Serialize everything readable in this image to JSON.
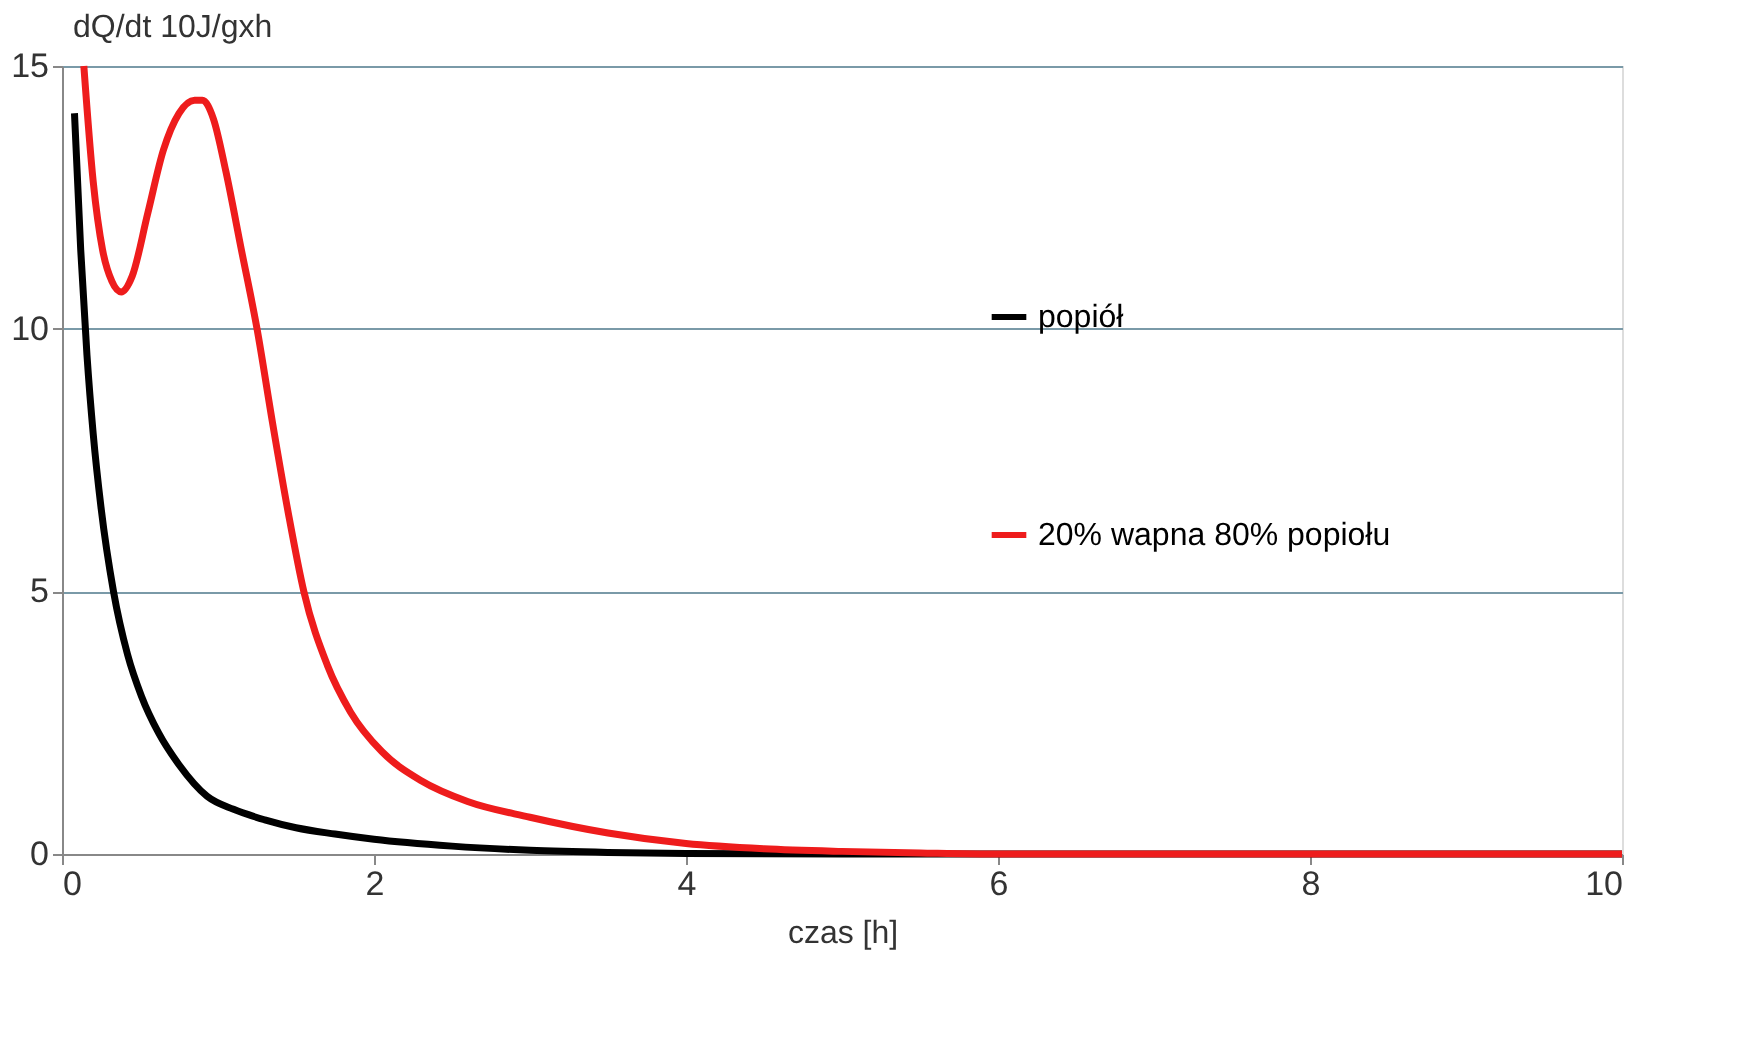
{
  "chart_data": {
    "type": "line",
    "xlabel": "czas [h]",
    "ylabel": "dQ/dt 10J/gxh",
    "xlim": [
      0,
      10
    ],
    "ylim": [
      0,
      15
    ],
    "xticks": [
      0,
      2,
      4,
      6,
      8,
      10
    ],
    "yticks": [
      0,
      5,
      10,
      15
    ],
    "grid": "y",
    "legend": "top right",
    "marker": "none",
    "line_style": "solid",
    "series": [
      {
        "name": "popiół",
        "color": "#000000",
        "x": [
          0.08,
          0.12,
          0.16,
          0.2,
          0.25,
          0.33,
          0.42,
          0.51,
          0.62,
          0.75,
          0.93,
          1.1,
          1.3,
          1.5,
          1.75,
          2.0,
          2.5,
          3.0,
          3.5,
          4.0,
          5.0,
          6.0,
          8.0,
          10.0
        ],
        "values": [
          14.1,
          11.5,
          9.5,
          8.0,
          6.6,
          5.0,
          3.8,
          3.0,
          2.3,
          1.7,
          1.1,
          0.85,
          0.65,
          0.5,
          0.38,
          0.28,
          0.15,
          0.07,
          0.03,
          0.01,
          0,
          0,
          0,
          0
        ]
      },
      {
        "name": "20% wapna 80% popiołu",
        "color": "#ee1c1c",
        "x": [
          0.14,
          0.2,
          0.26,
          0.32,
          0.38,
          0.45,
          0.55,
          0.65,
          0.75,
          0.85,
          0.9,
          0.97,
          1.05,
          1.15,
          1.25,
          1.35,
          1.45,
          1.55,
          1.7,
          1.85,
          2.05,
          2.3,
          2.6,
          3.0,
          3.5,
          4.0,
          4.5,
          5.0,
          5.5,
          6.0,
          8.0,
          10.0
        ],
        "values": [
          15.0,
          12.8,
          11.5,
          10.9,
          10.7,
          11.0,
          12.2,
          13.4,
          14.1,
          14.35,
          14.35,
          14.0,
          13.0,
          11.5,
          10.0,
          8.2,
          6.5,
          5.0,
          3.6,
          2.7,
          1.95,
          1.4,
          1.0,
          0.7,
          0.4,
          0.2,
          0.1,
          0.05,
          0.02,
          0,
          0,
          0
        ]
      }
    ]
  }
}
